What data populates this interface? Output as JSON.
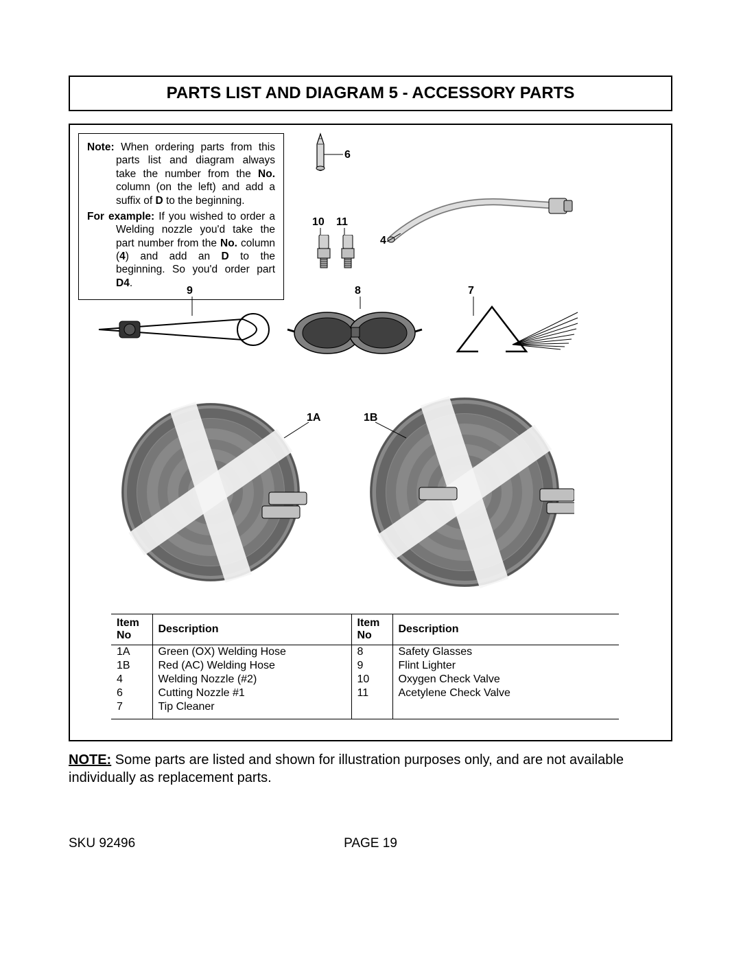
{
  "title": "PARTS LIST AND DIAGRAM 5 - ACCESSORY PARTS",
  "note_box": {
    "line1_prefix": "Note:",
    "line1": "When ordering parts from this parts list and diagram always take the number from the ",
    "line1_bold": "No.",
    "line1_cont": " column (on the left) and add a suffix of ",
    "line1_bold2": "D",
    "line1_end": " to the beginning.",
    "line2_prefix": "For example:",
    "line2": " If you wished to order a Welding nozzle you'd take the part number from the ",
    "line2_bold": "No.",
    "line2_cont": " column (",
    "line2_bold2": "4",
    "line2_cont2": ") and add an ",
    "line2_bold3": "D",
    "line2_cont3": " to the beginning. So you'd order part ",
    "line2_bold4": "D4",
    "line2_end": "."
  },
  "callouts": {
    "c6": "6",
    "c10": "10",
    "c11": "11",
    "c4": "4",
    "c9": "9",
    "c8": "8",
    "c7": "7",
    "c1a": "1A",
    "c1b": "1B"
  },
  "table": {
    "headers": {
      "no": "Item No",
      "desc": "Description",
      "no2": "Item No",
      "desc2": "Description"
    },
    "rows": [
      {
        "no": "1A",
        "desc": "Green (OX) Welding Hose",
        "no2": "8",
        "desc2": "Safety Glasses"
      },
      {
        "no": "1B",
        "desc": "Red (AC) Welding Hose",
        "no2": "9",
        "desc2": "Flint Lighter"
      },
      {
        "no": "4",
        "desc": "Welding Nozzle (#2)",
        "no2": "10",
        "desc2": "Oxygen Check Valve"
      },
      {
        "no": "6",
        "desc": "Cutting Nozzle #1",
        "no2": "11",
        "desc2": "Acetylene Check Valve"
      },
      {
        "no": "7",
        "desc": "Tip Cleaner",
        "no2": "",
        "desc2": ""
      }
    ]
  },
  "footer_note_bold": "NOTE:",
  "footer_note": " Some parts are listed and shown for illustration purposes only, and are not available individually as replacement parts.",
  "sku_label": "SKU 92496",
  "page_label": "PAGE 19",
  "style": {
    "stroke": "#000000",
    "fill_light": "#d0d0d0",
    "fill_mid": "#a0a0a0",
    "fill_dark": "#707070",
    "hose": "#888888"
  }
}
